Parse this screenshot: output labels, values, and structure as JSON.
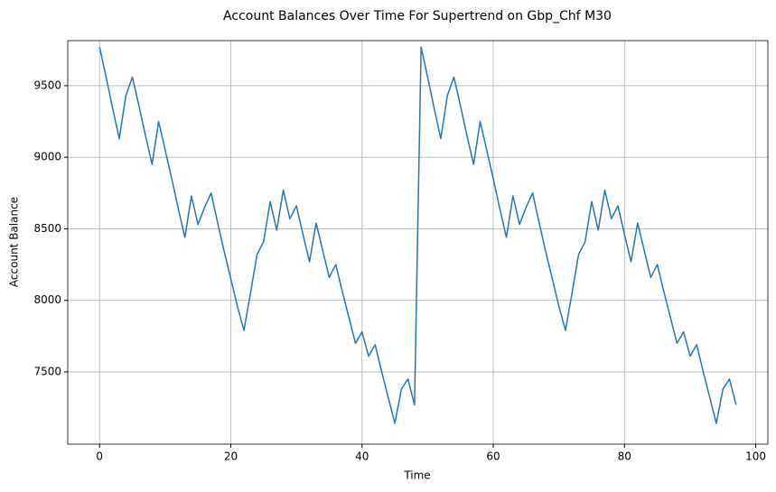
{
  "chart_data": {
    "type": "line",
    "title": "Account Balances Over Time For Supertrend on Gbp_Chf M30",
    "x_label": "Time",
    "y_label": "Account Balance",
    "x": [
      0,
      1,
      2,
      3,
      4,
      5,
      6,
      7,
      8,
      9,
      10,
      11,
      12,
      13,
      14,
      15,
      16,
      17,
      18,
      19,
      20,
      21,
      22,
      23,
      24,
      25,
      26,
      27,
      28,
      29,
      30,
      31,
      32,
      33,
      34,
      35,
      36,
      37,
      38,
      39,
      40,
      41,
      42,
      43,
      44,
      45,
      46,
      47,
      48,
      49,
      50,
      51,
      52,
      53,
      54,
      55,
      56,
      57,
      58,
      59,
      60,
      61,
      62,
      63,
      64,
      65,
      66,
      67,
      68,
      69,
      70,
      71,
      72,
      73,
      74,
      75,
      76,
      77,
      78,
      79,
      80,
      81,
      82,
      83,
      84,
      85,
      86,
      87,
      88,
      89,
      90,
      91,
      92,
      93,
      94,
      95,
      96,
      97
    ],
    "values": [
      9770,
      9560,
      9340,
      9130,
      9430,
      9560,
      9360,
      9150,
      8950,
      9250,
      9050,
      8850,
      8640,
      8440,
      8730,
      8530,
      8650,
      8750,
      8540,
      8340,
      8150,
      7960,
      7790,
      8050,
      8320,
      8410,
      8690,
      8490,
      8770,
      8570,
      8660,
      8460,
      8270,
      8540,
      8350,
      8160,
      8250,
      8060,
      7880,
      7700,
      7780,
      7610,
      7690,
      7500,
      7320,
      7140,
      7380,
      7450,
      7270,
      9770,
      9560,
      9340,
      9130,
      9430,
      9560,
      9360,
      9150,
      8950,
      9250,
      9050,
      8850,
      8640,
      8440,
      8730,
      8530,
      8650,
      8750,
      8540,
      8340,
      8150,
      7960,
      7790,
      8050,
      8320,
      8410,
      8690,
      8490,
      8770,
      8570,
      8660,
      8460,
      8270,
      8540,
      8350,
      8160,
      8250,
      8060,
      7880,
      7700,
      7780,
      7610,
      7690,
      7500,
      7320,
      7140,
      7380,
      7450,
      7270
    ],
    "color": "#1f77b4",
    "xlim": [
      -4.85,
      101.85
    ],
    "xticks": [
      0,
      20,
      40,
      60,
      80,
      100
    ],
    "ylim": [
      6995,
      9815
    ],
    "yticks": [
      7500,
      8000,
      8500,
      9000,
      9500
    ],
    "grid": true
  }
}
